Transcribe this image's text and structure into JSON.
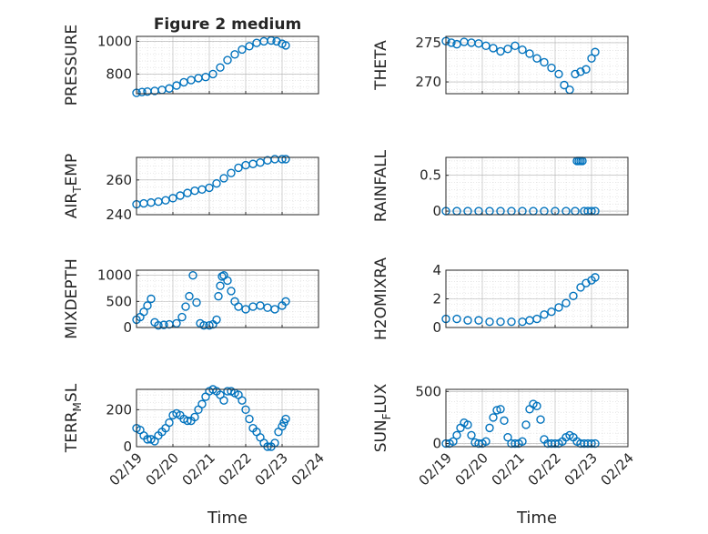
{
  "figure": {
    "title": "Figure 2 medium"
  },
  "colors": {
    "marker": "#0072bd",
    "axis": "#262626"
  },
  "chart_data": [
    {
      "type": "scatter",
      "title": "Figure 2 medium",
      "ylabel": "PRESSURE",
      "ylabel_sub": "",
      "ylabel_tail": "",
      "xlabel": "",
      "xlim": [
        0,
        5
      ],
      "ylim": [
        680,
        1030
      ],
      "xticks": [
        0,
        1,
        2,
        3,
        4,
        5
      ],
      "xtick_labels": [],
      "yticks": [
        800,
        1000
      ],
      "ytick_labels": [
        "800",
        "1000"
      ],
      "grid": true,
      "minor_grid": true,
      "x": [
        0,
        0.15,
        0.3,
        0.5,
        0.7,
        0.9,
        1.1,
        1.3,
        1.5,
        1.7,
        1.9,
        2.1,
        2.3,
        2.5,
        2.7,
        2.9,
        3.1,
        3.3,
        3.5,
        3.7,
        3.85,
        4.0,
        4.1
      ],
      "y": [
        685,
        690,
        693,
        697,
        703,
        712,
        730,
        750,
        763,
        775,
        782,
        800,
        840,
        885,
        920,
        950,
        970,
        990,
        1000,
        1005,
        1000,
        985,
        975
      ]
    },
    {
      "type": "scatter",
      "title": "",
      "ylabel": "THETA",
      "ylabel_sub": "",
      "ylabel_tail": "",
      "xlabel": "",
      "xlim": [
        0,
        5
      ],
      "ylim": [
        268.5,
        275.8
      ],
      "xticks": [
        0,
        1,
        2,
        3,
        4,
        5
      ],
      "xtick_labels": [],
      "yticks": [
        270,
        275
      ],
      "ytick_labels": [
        "270",
        "275"
      ],
      "grid": true,
      "minor_grid": true,
      "x": [
        0,
        0.15,
        0.3,
        0.5,
        0.7,
        0.9,
        1.1,
        1.3,
        1.5,
        1.7,
        1.9,
        2.1,
        2.3,
        2.5,
        2.7,
        2.9,
        3.1,
        3.25,
        3.4,
        3.55,
        3.7,
        3.85,
        4.0,
        4.1
      ],
      "y": [
        275.2,
        275.0,
        274.8,
        275.1,
        275.0,
        274.9,
        274.6,
        274.3,
        273.9,
        274.2,
        274.6,
        274.1,
        273.6,
        273.0,
        272.5,
        271.8,
        271.0,
        269.6,
        269.0,
        271.0,
        271.3,
        271.6,
        273.0,
        273.8
      ]
    },
    {
      "type": "scatter",
      "title": "",
      "ylabel": "AIR",
      "ylabel_sub": "T",
      "ylabel_tail": "EMP",
      "xlabel": "",
      "xlim": [
        0,
        5
      ],
      "ylim": [
        240,
        273
      ],
      "xticks": [
        0,
        1,
        2,
        3,
        4,
        5
      ],
      "xtick_labels": [],
      "yticks": [
        240,
        260
      ],
      "ytick_labels": [
        "240",
        "260"
      ],
      "grid": true,
      "minor_grid": true,
      "x": [
        0,
        0.2,
        0.4,
        0.6,
        0.8,
        1.0,
        1.2,
        1.4,
        1.6,
        1.8,
        2.0,
        2.2,
        2.4,
        2.6,
        2.8,
        3.0,
        3.2,
        3.4,
        3.6,
        3.8,
        4.0,
        4.1
      ],
      "y": [
        246,
        246.5,
        247,
        247.5,
        248.3,
        249.5,
        251,
        252.5,
        253.8,
        254.5,
        255.5,
        258,
        261,
        264,
        267,
        268.5,
        269.2,
        270,
        271.3,
        272,
        272,
        272
      ]
    },
    {
      "type": "scatter",
      "title": "",
      "ylabel": "RAINFALL",
      "ylabel_sub": "",
      "ylabel_tail": "",
      "xlabel": "",
      "xlim": [
        0,
        5
      ],
      "ylim": [
        -0.05,
        0.75
      ],
      "xticks": [
        0,
        1,
        2,
        3,
        4,
        5
      ],
      "xtick_labels": [],
      "yticks": [
        0,
        0.5
      ],
      "ytick_labels": [
        "0",
        "0.5"
      ],
      "grid": true,
      "minor_grid": true,
      "x": [
        0,
        0.3,
        0.6,
        0.9,
        1.2,
        1.5,
        1.8,
        2.1,
        2.4,
        2.7,
        3.0,
        3.3,
        3.55,
        3.6,
        3.65,
        3.7,
        3.75,
        3.8,
        3.9,
        4.0,
        4.1
      ],
      "y": [
        0,
        0,
        0,
        0,
        0,
        0,
        0,
        0,
        0,
        0,
        0,
        0,
        0,
        0.7,
        0.7,
        0.7,
        0.7,
        0,
        0,
        0,
        0
      ]
    },
    {
      "type": "scatter",
      "title": "",
      "ylabel": "MIXDEPTH",
      "ylabel_sub": "",
      "ylabel_tail": "",
      "xlabel": "",
      "xlim": [
        0,
        5
      ],
      "ylim": [
        0,
        1100
      ],
      "xticks": [
        0,
        1,
        2,
        3,
        4,
        5
      ],
      "xtick_labels": [],
      "yticks": [
        0,
        500,
        1000
      ],
      "ytick_labels": [
        "0",
        "500",
        "1000"
      ],
      "grid": true,
      "minor_grid": true,
      "x": [
        0,
        0.1,
        0.2,
        0.3,
        0.4,
        0.5,
        0.6,
        0.75,
        0.9,
        1.1,
        1.25,
        1.35,
        1.45,
        1.55,
        1.65,
        1.75,
        1.85,
        2.0,
        2.1,
        2.2,
        2.25,
        2.3,
        2.35,
        2.4,
        2.5,
        2.6,
        2.7,
        2.8,
        3.0,
        3.2,
        3.4,
        3.6,
        3.8,
        4.0,
        4.1
      ],
      "y": [
        150,
        200,
        300,
        420,
        550,
        100,
        40,
        50,
        60,
        80,
        200,
        400,
        600,
        1000,
        480,
        80,
        40,
        40,
        60,
        150,
        600,
        800,
        980,
        1000,
        900,
        700,
        500,
        400,
        350,
        400,
        420,
        380,
        350,
        420,
        500
      ]
    },
    {
      "type": "scatter",
      "title": "",
      "ylabel": "H2OMIXRA",
      "ylabel_sub": "",
      "ylabel_tail": "",
      "xlabel": "",
      "xlim": [
        0,
        5
      ],
      "ylim": [
        0,
        4
      ],
      "xticks": [
        0,
        1,
        2,
        3,
        4,
        5
      ],
      "xtick_labels": [],
      "yticks": [
        0,
        2,
        4
      ],
      "ytick_labels": [
        "0",
        "2",
        "4"
      ],
      "grid": true,
      "minor_grid": true,
      "x": [
        0,
        0.3,
        0.6,
        0.9,
        1.2,
        1.5,
        1.8,
        2.1,
        2.3,
        2.5,
        2.7,
        2.9,
        3.1,
        3.3,
        3.5,
        3.7,
        3.85,
        4.0,
        4.1
      ],
      "y": [
        0.6,
        0.6,
        0.5,
        0.5,
        0.4,
        0.4,
        0.4,
        0.4,
        0.5,
        0.6,
        0.9,
        1.1,
        1.4,
        1.7,
        2.2,
        2.8,
        3.1,
        3.3,
        3.5
      ]
    },
    {
      "type": "scatter",
      "title": "",
      "ylabel": "TERR",
      "ylabel_sub": "M",
      "ylabel_tail": "SL",
      "xlabel": "Time",
      "xlim": [
        0,
        5
      ],
      "ylim": [
        0,
        310
      ],
      "xticks": [
        0,
        1,
        2,
        3,
        4,
        5
      ],
      "xtick_labels": [
        "02/19",
        "02/20",
        "02/21",
        "02/22",
        "02/23",
        "02/24"
      ],
      "yticks": [
        0,
        200
      ],
      "ytick_labels": [
        "0",
        "200"
      ],
      "grid": true,
      "minor_grid": true,
      "x": [
        0,
        0.1,
        0.2,
        0.3,
        0.4,
        0.5,
        0.6,
        0.7,
        0.8,
        0.9,
        1.0,
        1.1,
        1.2,
        1.3,
        1.4,
        1.5,
        1.6,
        1.7,
        1.8,
        1.9,
        2.0,
        2.1,
        2.2,
        2.3,
        2.4,
        2.5,
        2.6,
        2.7,
        2.8,
        2.9,
        3.0,
        3.1,
        3.2,
        3.3,
        3.4,
        3.5,
        3.6,
        3.7,
        3.8,
        3.9,
        4.0,
        4.05,
        4.1
      ],
      "y": [
        100,
        90,
        60,
        40,
        40,
        30,
        60,
        80,
        100,
        130,
        170,
        180,
        170,
        150,
        140,
        140,
        160,
        200,
        230,
        270,
        300,
        310,
        300,
        280,
        250,
        300,
        300,
        290,
        280,
        250,
        200,
        150,
        100,
        80,
        50,
        20,
        0,
        0,
        20,
        80,
        110,
        130,
        150
      ]
    },
    {
      "type": "scatter",
      "title": "",
      "ylabel": "SUN",
      "ylabel_sub": "F",
      "ylabel_tail": "LUX",
      "xlabel": "Time",
      "xlim": [
        0,
        5
      ],
      "ylim": [
        -30,
        520
      ],
      "xticks": [
        0,
        1,
        2,
        3,
        4,
        5
      ],
      "xtick_labels": [
        "02/19",
        "02/20",
        "02/21",
        "02/22",
        "02/23",
        "02/24"
      ],
      "yticks": [
        0,
        500
      ],
      "ytick_labels": [
        "0",
        "500"
      ],
      "grid": true,
      "minor_grid": true,
      "x": [
        0,
        0.1,
        0.2,
        0.3,
        0.4,
        0.5,
        0.6,
        0.7,
        0.8,
        0.9,
        1.0,
        1.1,
        1.2,
        1.3,
        1.4,
        1.5,
        1.6,
        1.7,
        1.8,
        1.9,
        2.0,
        2.1,
        2.2,
        2.3,
        2.4,
        2.5,
        2.6,
        2.7,
        2.8,
        2.9,
        3.0,
        3.1,
        3.2,
        3.3,
        3.4,
        3.5,
        3.6,
        3.7,
        3.8,
        3.9,
        4.0,
        4.1
      ],
      "y": [
        0,
        0,
        20,
        80,
        150,
        200,
        180,
        80,
        10,
        0,
        0,
        20,
        150,
        250,
        320,
        330,
        220,
        60,
        0,
        0,
        0,
        20,
        180,
        330,
        380,
        360,
        230,
        40,
        0,
        0,
        0,
        0,
        20,
        60,
        80,
        60,
        20,
        0,
        0,
        0,
        0,
        0
      ]
    }
  ]
}
